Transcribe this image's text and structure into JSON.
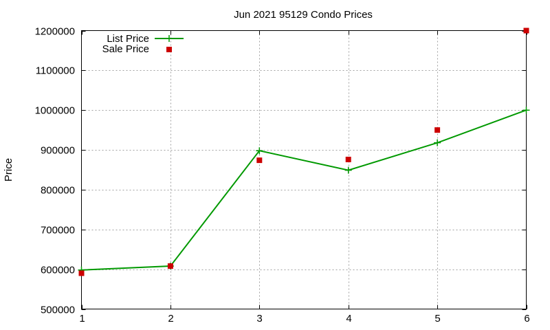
{
  "chart_data": {
    "type": "line",
    "title": "Jun 2021 95129 Condo Prices",
    "xlabel": "",
    "ylabel": "Price",
    "x": [
      1,
      2,
      3,
      4,
      5,
      6
    ],
    "xlim": [
      1,
      6
    ],
    "ylim": [
      500000,
      1200000
    ],
    "xticks": [
      "1",
      "2",
      "3",
      "4",
      "5",
      "6"
    ],
    "yticks": [
      "500000",
      "600000",
      "700000",
      "800000",
      "900000",
      "1000000",
      "1100000",
      "1200000"
    ],
    "grid": true,
    "legend_position": "top-left",
    "series": [
      {
        "name": "List Price",
        "style": "line with plus markers",
        "color": "#009900",
        "values": [
          598000,
          608000,
          898000,
          849000,
          918000,
          1000000
        ]
      },
      {
        "name": "Sale Price",
        "style": "square points",
        "color": "#cc0000",
        "values": [
          590000,
          608000,
          874000,
          876000,
          950000,
          1200000
        ]
      }
    ]
  }
}
